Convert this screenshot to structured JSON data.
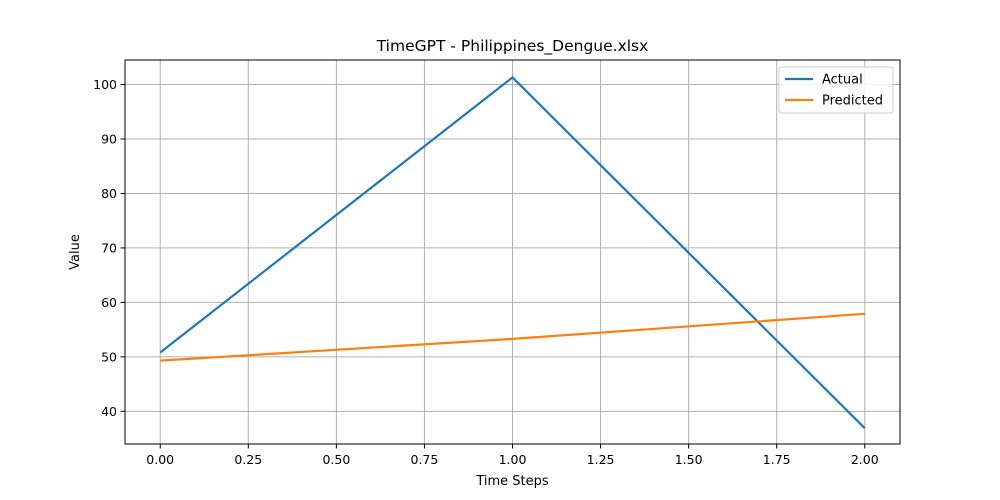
{
  "chart_data": {
    "type": "line",
    "title": "TimeGPT - Philippines_Dengue.xlsx",
    "xlabel": "Time Steps",
    "ylabel": "Value",
    "x": [
      0,
      1,
      2
    ],
    "xlim": [
      -0.1,
      2.1
    ],
    "ylim": [
      34,
      104.5
    ],
    "xticks": [
      0.0,
      0.25,
      0.5,
      0.75,
      1.0,
      1.25,
      1.5,
      1.75,
      2.0
    ],
    "xtick_labels": [
      "0.00",
      "0.25",
      "0.50",
      "0.75",
      "1.00",
      "1.25",
      "1.50",
      "1.75",
      "2.00"
    ],
    "yticks": [
      40,
      50,
      60,
      70,
      80,
      90,
      100
    ],
    "ytick_labels": [
      "40",
      "50",
      "60",
      "70",
      "80",
      "90",
      "100"
    ],
    "grid": true,
    "legend_position": "top-right",
    "series": [
      {
        "name": "Actual",
        "color": "#1f77b4",
        "values": [
          50.8,
          101.3,
          36.9
        ]
      },
      {
        "name": "Predicted",
        "color": "#ff7f0e",
        "values": [
          49.3,
          53.3,
          57.9
        ]
      }
    ]
  }
}
